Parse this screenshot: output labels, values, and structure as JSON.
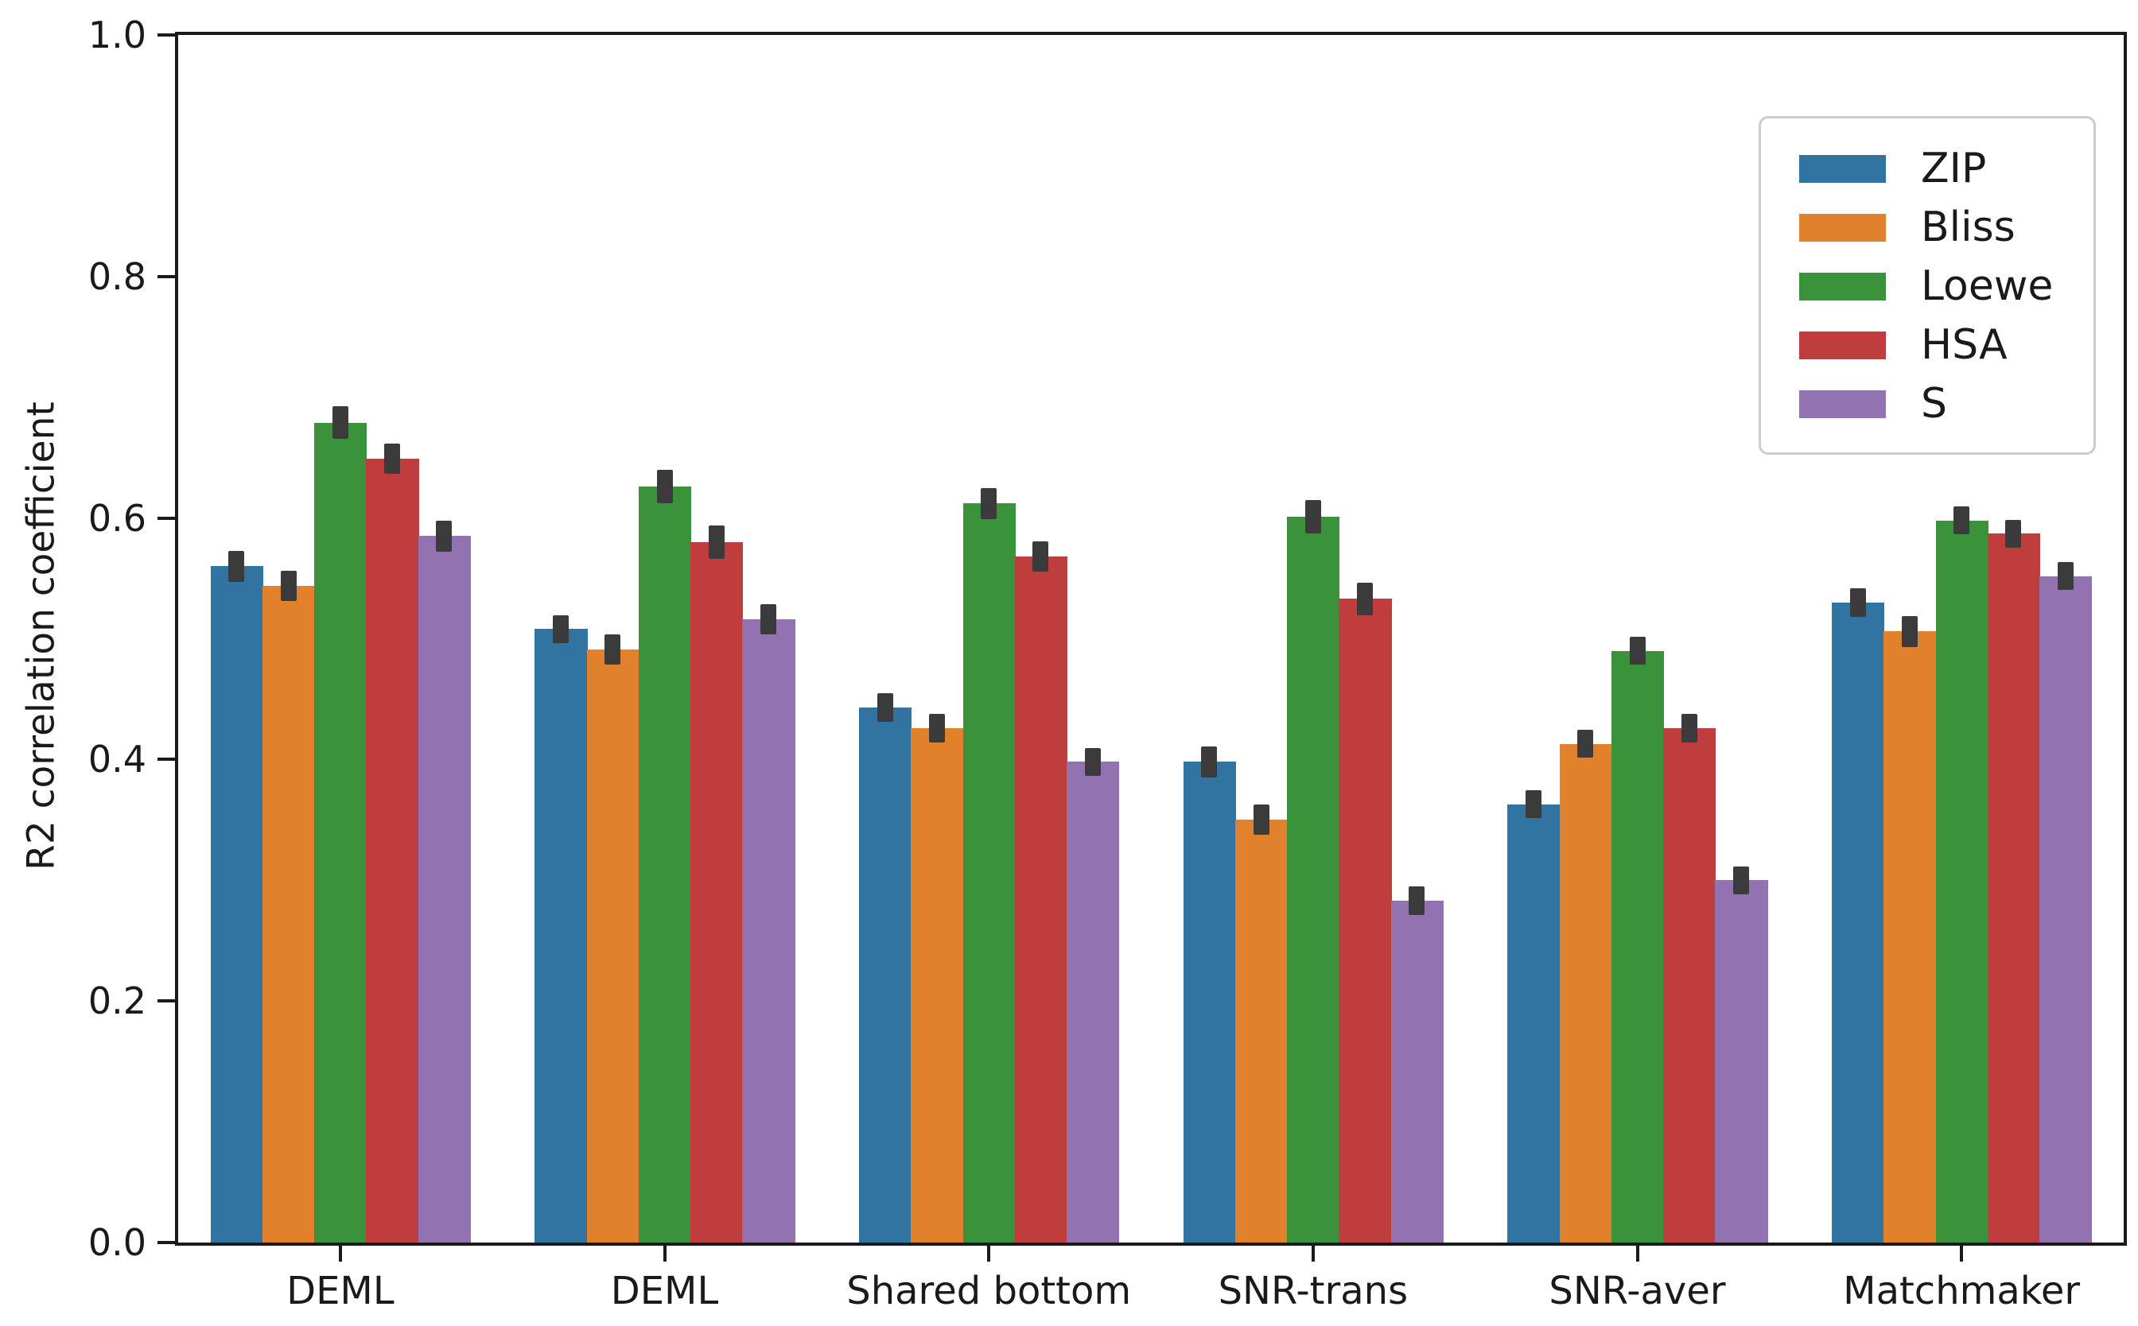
{
  "chart_data": {
    "type": "bar",
    "title": "",
    "xlabel": "",
    "ylabel": "R2 correlation coefficient",
    "ylim": [
      0.0,
      1.0
    ],
    "yticks": [
      "0.0",
      "0.2",
      "0.4",
      "0.6",
      "0.8",
      "1.0"
    ],
    "grid": false,
    "legend_position": "upper right",
    "categories": [
      "DEML",
      "DEML",
      "Shared bottom",
      "SNR-trans",
      "SNR-aver",
      "Matchmaker"
    ],
    "series": [
      {
        "name": "ZIP",
        "color": "#3274a1",
        "values": [
          0.56,
          0.508,
          0.443,
          0.398,
          0.363,
          0.53
        ],
        "errors": [
          0.008,
          0.007,
          0.007,
          0.008,
          0.007,
          0.007
        ]
      },
      {
        "name": "Bliss",
        "color": "#e1812c",
        "values": [
          0.544,
          0.491,
          0.426,
          0.35,
          0.413,
          0.506
        ],
        "errors": [
          0.008,
          0.008,
          0.007,
          0.008,
          0.007,
          0.008
        ]
      },
      {
        "name": "Loewe",
        "color": "#3a923a",
        "values": [
          0.679,
          0.626,
          0.612,
          0.601,
          0.49,
          0.598
        ],
        "errors": [
          0.009,
          0.009,
          0.008,
          0.009,
          0.007,
          0.007
        ]
      },
      {
        "name": "HSA",
        "color": "#c03d3e",
        "values": [
          0.649,
          0.58,
          0.568,
          0.533,
          0.426,
          0.587
        ],
        "errors": [
          0.008,
          0.009,
          0.008,
          0.009,
          0.007,
          0.007
        ]
      },
      {
        "name": "S",
        "color": "#9372b2",
        "values": [
          0.585,
          0.516,
          0.398,
          0.283,
          0.3,
          0.552
        ],
        "errors": [
          0.008,
          0.008,
          0.007,
          0.007,
          0.007,
          0.007
        ]
      }
    ],
    "error_bar_color": "#3b3b3b",
    "bar_group_width_fraction": 0.8,
    "background_color": "#ffffff",
    "axis_color": "#1a1a1a"
  }
}
